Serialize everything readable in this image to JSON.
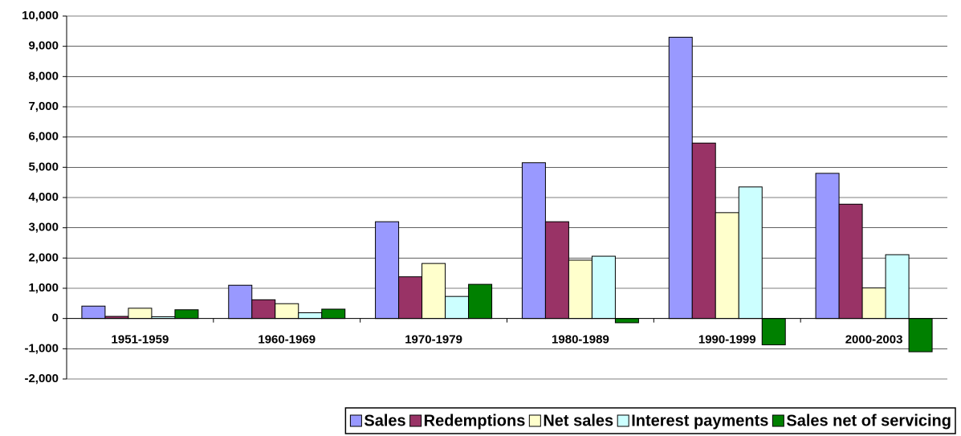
{
  "chart_data": {
    "type": "bar",
    "categories": [
      "1951-1959",
      "1960-1969",
      "1970-1979",
      "1980-1989",
      "1990-1999",
      "2000-2003"
    ],
    "series": [
      {
        "name": "Sales",
        "color": "#9999ff",
        "values": [
          410,
          1100,
          3200,
          5150,
          9300,
          4800
        ]
      },
      {
        "name": "Redemptions",
        "color": "#993366",
        "values": [
          70,
          620,
          1380,
          3200,
          5800,
          3780
        ]
      },
      {
        "name": "Net sales",
        "color": "#ffffcc",
        "values": [
          340,
          490,
          1820,
          1930,
          3500,
          1010
        ]
      },
      {
        "name": "Interest payments",
        "color": "#ccffff",
        "values": [
          60,
          190,
          730,
          2060,
          4350,
          2110
        ]
      },
      {
        "name": "Sales net of servicing",
        "color": "#008000",
        "values": [
          290,
          310,
          1130,
          -140,
          -870,
          -1100
        ]
      }
    ],
    "ylim": [
      -2000,
      10000
    ],
    "yticks": [
      {
        "value": -2000,
        "label": "-2,000"
      },
      {
        "value": -1000,
        "label": "-1,000"
      },
      0,
      {
        "value": 1000,
        "label": "1,000"
      },
      {
        "value": 2000,
        "label": "2,000"
      },
      {
        "value": 3000,
        "label": "3,000"
      },
      {
        "value": 4000,
        "label": "4,000"
      },
      {
        "value": 5000,
        "label": "5,000"
      },
      {
        "value": 6000,
        "label": "6,000"
      },
      {
        "value": 7000,
        "label": "7,000"
      },
      {
        "value": 8000,
        "label": "8,000"
      },
      {
        "value": 9000,
        "label": "9,000"
      },
      {
        "value": 10000,
        "label": "10,000"
      }
    ],
    "grid": true,
    "legend": "bottom"
  }
}
